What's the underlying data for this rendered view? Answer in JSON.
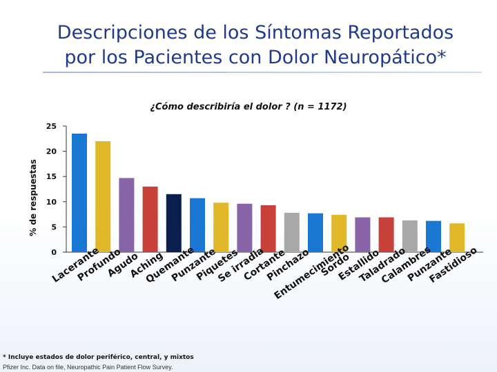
{
  "header": {
    "title_line1": "Descripciones de los Síntomas Reportados",
    "title_line2": "por los Pacientes con Dolor Neuropático*"
  },
  "footer": {
    "footnote": "* Incluye estados de dolor periférico, central, y mixtos",
    "source": "Pfizer Inc. Data on file, Neuropathic Pain Patient Flow Survey."
  },
  "chart_data": {
    "type": "bar",
    "title": "¿Cómo describiría el dolor ? (n = 1172)",
    "xlabel": "",
    "ylabel": "% de respuestas",
    "ylim": [
      0,
      25
    ],
    "yticks": [
      0,
      5,
      10,
      15,
      20,
      25
    ],
    "categories": [
      "Lacerante",
      "Profundo",
      "Agudo",
      "Aching",
      "Quemante",
      "Punzante",
      "Piquetes",
      "Se irradia",
      "Cortante",
      "Pinchazo",
      "Entumecimiento",
      "Sordo",
      "Estallido",
      "Taladrado",
      "Calambres",
      "Punzante",
      "Fastidioso"
    ],
    "values": [
      23.5,
      22,
      14.7,
      13,
      11.5,
      10.7,
      9.8,
      9.6,
      9.3,
      7.8,
      7.7,
      7.4,
      6.9,
      6.9,
      6.3,
      6.2,
      5.7
    ],
    "colors": [
      "#1a78d2",
      "#e0b82a",
      "#8765a8",
      "#c8403a",
      "#0b1f4f",
      "#1a78d2",
      "#e0b82a",
      "#8765a8",
      "#c8403a",
      "#a8a8a8",
      "#1a78d2",
      "#e0b82a",
      "#8765a8",
      "#c8403a",
      "#a8a8a8",
      "#1a78d2",
      "#e0b82a"
    ]
  }
}
